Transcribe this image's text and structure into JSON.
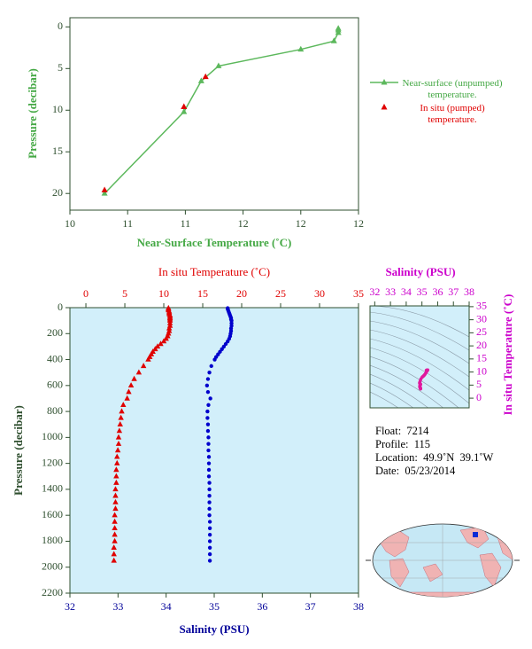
{
  "chart_data": [
    {
      "type": "line",
      "x_label": "Near-Surface Temperature (˚C)",
      "y_label": "Pressure (decibar)",
      "xlim": [
        10.3,
        12.3
      ],
      "xticks": [
        {
          "value": 10.3,
          "label": "10"
        },
        {
          "value": 10.7,
          "label": "11"
        },
        {
          "value": 11.1,
          "label": "11"
        },
        {
          "value": 11.5,
          "label": "12"
        },
        {
          "value": 11.9,
          "label": "12"
        },
        {
          "value": 12.3,
          "label": "12"
        }
      ],
      "ylim": [
        -1.1,
        22
      ],
      "yticks": [
        0,
        5,
        10,
        15,
        20
      ],
      "y_inverted": true,
      "legend": "right",
      "series": [
        {
          "name": "Near-surface (unpumped) temperature.",
          "color": "#5cb85c",
          "marker": "triangle",
          "line": true,
          "x": [
            10.54,
            11.09,
            11.21,
            11.33,
            11.9,
            12.13,
            12.16,
            12.16,
            12.16
          ],
          "values": [
            20,
            10.2,
            6.5,
            4.7,
            2.7,
            1.7,
            0.7,
            0.4,
            0.2
          ]
        },
        {
          "name": "In situ (pumped) temperature.",
          "color": "#e00000",
          "marker": "triangle",
          "line": false,
          "x": [
            10.54,
            11.09,
            11.24
          ],
          "values": [
            19.6,
            9.6,
            6.0
          ]
        }
      ]
    },
    {
      "type": "scatter",
      "x_label": "Salinity (PSU)",
      "x2_label": "In situ Temperature (˚C)",
      "y_label": "Pressure (decibar)",
      "xlim": [
        32,
        38
      ],
      "xticks": [
        32,
        33,
        34,
        35,
        36,
        37,
        38
      ],
      "x2lim": [
        -2.05,
        35
      ],
      "x2ticks": [
        0,
        5,
        10,
        15,
        20,
        25,
        30,
        35
      ],
      "ylim": [
        0,
        2200
      ],
      "yticks": [
        0,
        200,
        400,
        600,
        800,
        1000,
        1200,
        1400,
        1600,
        1800,
        2000,
        2200
      ],
      "y_inverted": true,
      "series": [
        {
          "color": "#e00000",
          "marker": "triangle",
          "axis": "x2",
          "x": [
            10.6,
            10.6,
            10.6,
            10.7,
            10.7,
            10.7,
            10.8,
            10.8,
            10.8,
            10.8,
            10.8,
            10.8,
            10.8,
            10.7,
            10.7,
            10.6,
            10.5,
            10.3,
            10.0,
            9.6,
            9.2,
            8.9,
            8.6,
            8.4,
            8.2,
            8.0,
            7.4,
            6.8,
            6.2,
            5.8,
            5.5,
            5.3,
            4.8,
            4.6,
            4.5,
            4.4,
            4.3,
            4.2,
            4.2,
            4.1,
            4.0,
            4.0,
            3.9,
            3.9,
            3.9,
            3.8,
            3.8,
            3.8,
            3.8,
            3.7,
            3.7,
            3.7,
            3.7,
            3.7,
            3.6,
            3.6,
            3.6
          ],
          "values": [
            4,
            10,
            20,
            30,
            40,
            50,
            60,
            70,
            80,
            90,
            100,
            120,
            140,
            160,
            180,
            200,
            220,
            240,
            260,
            280,
            300,
            320,
            340,
            360,
            380,
            400,
            450,
            500,
            550,
            600,
            650,
            700,
            750,
            800,
            850,
            900,
            950,
            1000,
            1050,
            1100,
            1150,
            1200,
            1250,
            1300,
            1350,
            1400,
            1450,
            1500,
            1550,
            1600,
            1650,
            1700,
            1750,
            1800,
            1850,
            1900,
            1950
          ]
        },
        {
          "color": "#0000cc",
          "marker": "circle",
          "x": [
            35.28,
            35.28,
            35.29,
            35.3,
            35.31,
            35.32,
            35.33,
            35.34,
            35.35,
            35.35,
            35.36,
            35.36,
            35.36,
            35.35,
            35.35,
            35.34,
            35.33,
            35.31,
            35.28,
            35.24,
            35.2,
            35.16,
            35.12,
            35.08,
            35.04,
            35.01,
            34.94,
            34.9,
            34.87,
            34.85,
            34.87,
            34.92,
            34.88,
            34.86,
            34.86,
            34.87,
            34.87,
            34.88,
            34.88,
            34.88,
            34.89,
            34.89,
            34.89,
            34.89,
            34.9,
            34.9,
            34.9,
            34.9,
            34.9,
            34.9,
            34.91,
            34.91,
            34.91,
            34.91,
            34.91,
            34.91,
            34.91
          ],
          "values": [
            4,
            10,
            20,
            30,
            40,
            50,
            60,
            70,
            80,
            90,
            100,
            120,
            140,
            160,
            180,
            200,
            220,
            240,
            260,
            280,
            300,
            320,
            340,
            360,
            380,
            400,
            450,
            500,
            550,
            600,
            650,
            700,
            750,
            800,
            850,
            900,
            950,
            1000,
            1050,
            1100,
            1150,
            1200,
            1250,
            1300,
            1350,
            1400,
            1450,
            1500,
            1550,
            1600,
            1650,
            1700,
            1750,
            1800,
            1850,
            1900,
            1950
          ]
        }
      ]
    },
    {
      "type": "scatter",
      "x_label": "Salinity (PSU)",
      "y_label": "In situ Temperature (˚C)",
      "xlim": [
        31.7,
        38
      ],
      "xticks": [
        32,
        33,
        34,
        35,
        36,
        37,
        38
      ],
      "ylim": [
        -3.7,
        35.3
      ],
      "yticks": [
        0,
        5,
        10,
        15,
        20,
        25,
        30,
        35
      ],
      "color": "#e0199e",
      "x": [
        35.28,
        35.28,
        35.29,
        35.3,
        35.31,
        35.32,
        35.33,
        35.34,
        35.35,
        35.35,
        35.36,
        35.36,
        35.36,
        35.35,
        35.35,
        35.34,
        35.33,
        35.31,
        35.28,
        35.24,
        35.2,
        35.16,
        35.12,
        35.08,
        35.04,
        35.01,
        34.94,
        34.9,
        34.87,
        34.85,
        34.87,
        34.92,
        34.88,
        34.86,
        34.86,
        34.87,
        34.87,
        34.88,
        34.88,
        34.88,
        34.89,
        34.89,
        34.89,
        34.89,
        34.9,
        34.9,
        34.9,
        34.9,
        34.9,
        34.9,
        34.91,
        34.91,
        34.91,
        34.91,
        34.91,
        34.91,
        34.91
      ],
      "values": [
        10.6,
        10.6,
        10.6,
        10.7,
        10.7,
        10.7,
        10.8,
        10.8,
        10.8,
        10.8,
        10.8,
        10.8,
        10.8,
        10.7,
        10.7,
        10.6,
        10.5,
        10.3,
        10.0,
        9.6,
        9.2,
        8.9,
        8.6,
        8.4,
        8.2,
        8.0,
        7.4,
        6.8,
        6.2,
        5.8,
        5.5,
        5.3,
        4.8,
        4.6,
        4.5,
        4.4,
        4.3,
        4.2,
        4.2,
        4.1,
        4.0,
        4.0,
        3.9,
        3.9,
        3.9,
        3.8,
        3.8,
        3.8,
        3.8,
        3.7,
        3.7,
        3.7,
        3.7,
        3.7,
        3.6,
        3.6,
        3.6
      ]
    }
  ],
  "float_info": {
    "float": "Float:  7214",
    "profile": "Profile:  115",
    "location": "Location:  49.9˚N  39.1˚W",
    "date": "Date:  05/23/2014"
  }
}
